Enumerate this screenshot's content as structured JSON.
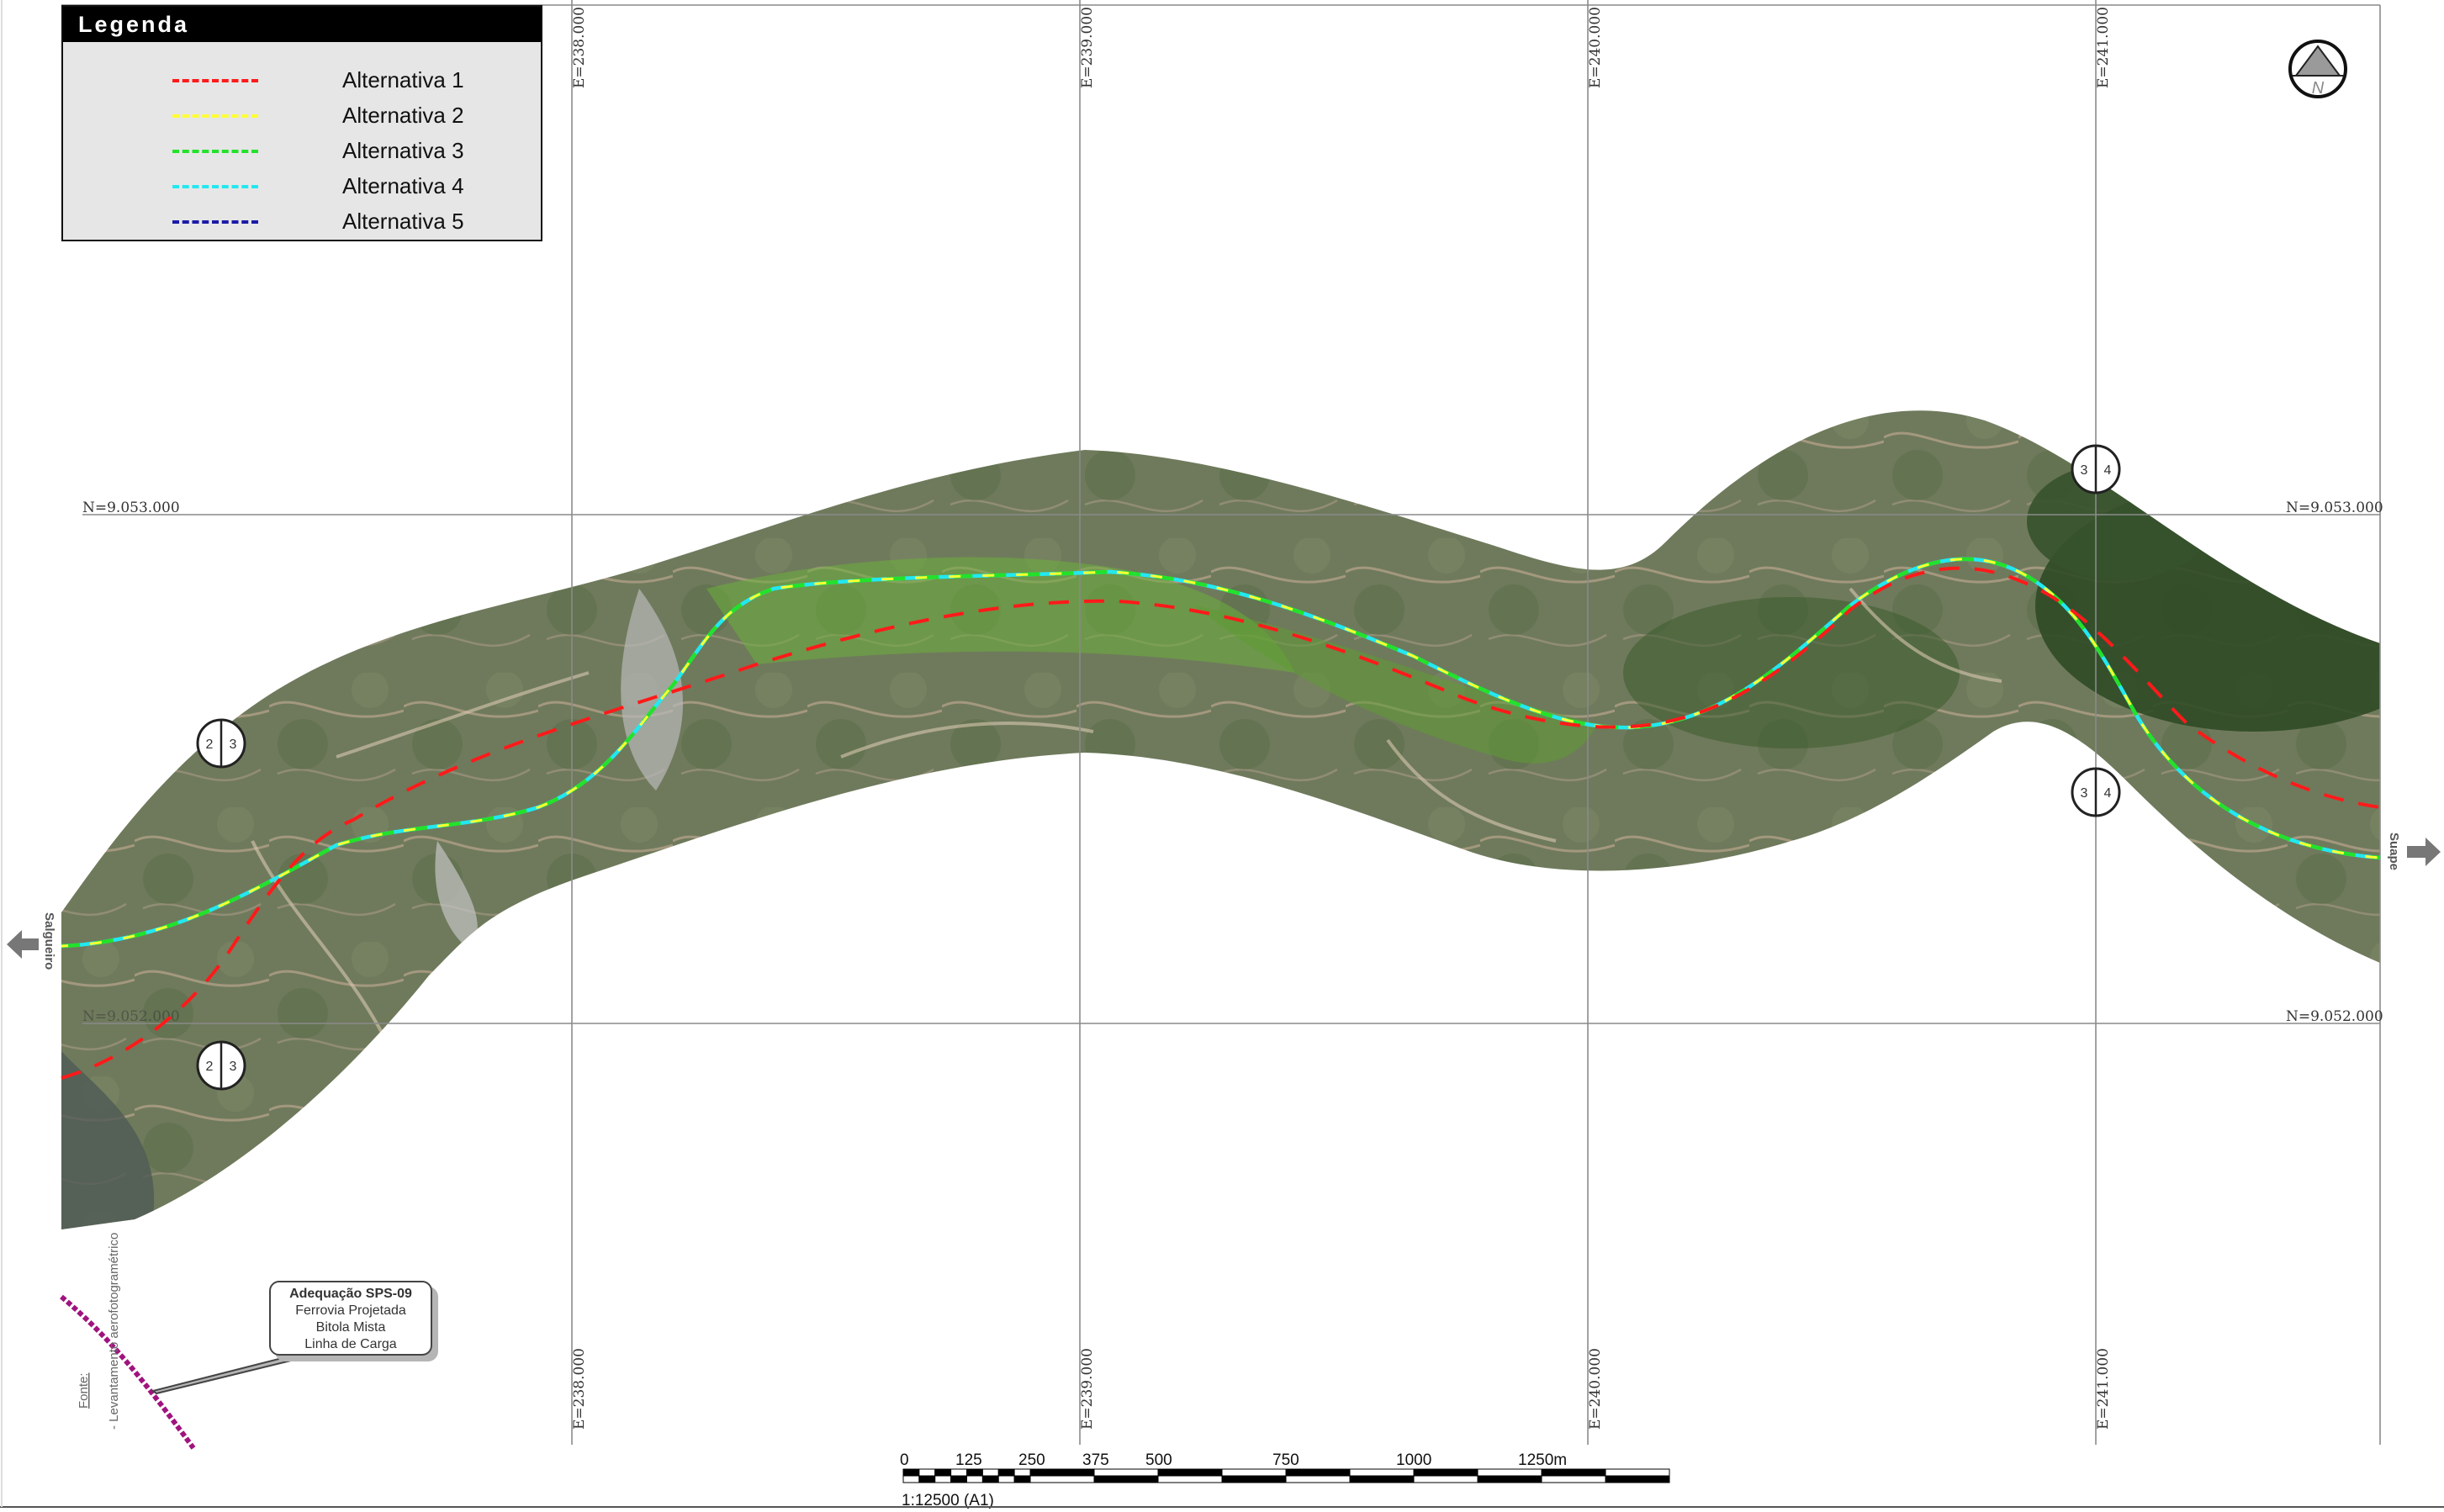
{
  "legend": {
    "title": "Legenda",
    "items": [
      {
        "label": "Alternativa 1",
        "color": "#ff1a1a"
      },
      {
        "label": "Alternativa 2",
        "color": "#ffff33"
      },
      {
        "label": "Alternativa 3",
        "color": "#22e22a"
      },
      {
        "label": "Alternativa 4",
        "color": "#22e8f0"
      },
      {
        "label": "Alternativa 5",
        "color": "#1a1aa8"
      }
    ]
  },
  "grid": {
    "easting": [
      "E=238.000",
      "E=239.000",
      "E=240.000",
      "E=241.000"
    ],
    "northing": [
      "N=9.053.000",
      "N=9.052.000"
    ]
  },
  "directions": {
    "west": "Salgueiro",
    "east": "Suape"
  },
  "markers": [
    {
      "left": "2",
      "right": "3"
    },
    {
      "left": "2",
      "right": "3"
    },
    {
      "left": "3",
      "right": "4"
    },
    {
      "left": "3",
      "right": "4"
    }
  ],
  "north_arrow": {
    "label": "N"
  },
  "callout": {
    "title": "Adequação SPS-09",
    "lines": [
      "Ferrovia Projetada",
      "Bitola Mista",
      "Linha de Carga"
    ]
  },
  "source": {
    "heading": "Fonte:",
    "text": "- Levantamento aerofotogramétrico"
  },
  "scale_bar": {
    "ticks": [
      "0",
      "125",
      "250",
      "375",
      "500",
      "750",
      "1000",
      "1250m"
    ],
    "ratio": "1:12500 (A1)"
  }
}
